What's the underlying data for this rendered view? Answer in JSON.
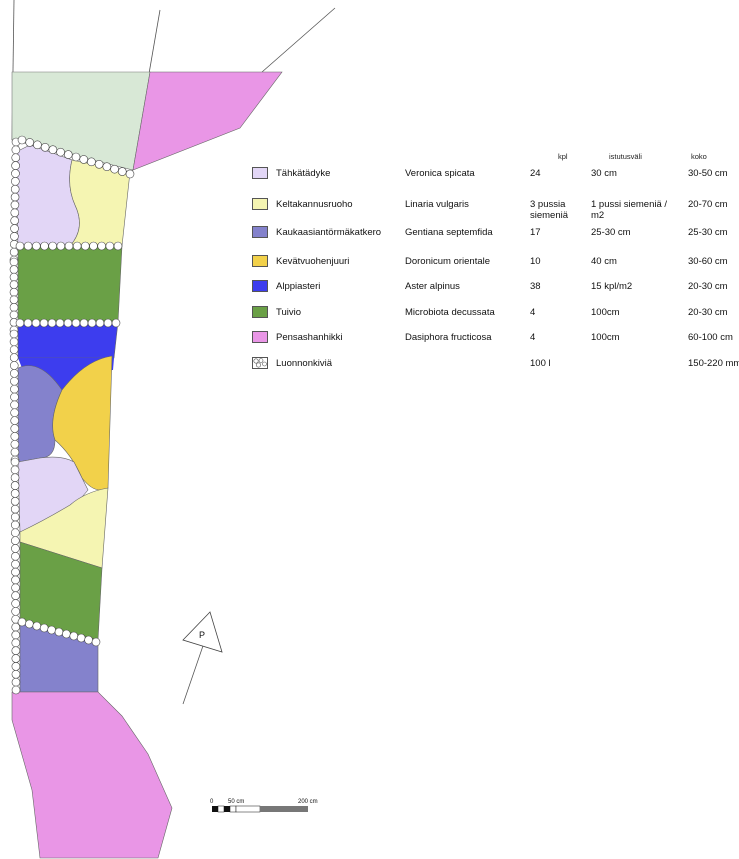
{
  "colors": {
    "tahkatadyke": "#e2d6f6",
    "keltakannusruoho": "#f5f5b2",
    "kaukaasiantormakatkero": "#8482cc",
    "kevatvuohenjuuri": "#f2d14a",
    "alppiasteri": "#3d3dee",
    "tuivio": "#6aa046",
    "pensashanhikki": "#e996e6",
    "lawn": "#d8e8d6",
    "stone": "#ffffff"
  },
  "table": {
    "headers": {
      "kpl": "kpl",
      "istutusvali": "istutusväli",
      "koko": "koko"
    },
    "rows": [
      {
        "swatch": "tahkatadyke",
        "name": "Tähkätädyke",
        "latin": "Veronica spicata",
        "kpl": "24",
        "vali": "30 cm",
        "koko": "30-50 cm"
      },
      {
        "swatch": "keltakannusruoho",
        "name": "Keltakannusruoho",
        "latin": "Linaria vulgaris",
        "kpl": "3 pussia siemeniä",
        "vali": "1 pussi siemeniä / m2",
        "koko": "20-70 cm"
      },
      {
        "swatch": "kaukaasiantormakatkero",
        "name": "Kaukaasiantörmäkatkero",
        "latin": "Gentiana septemfida",
        "kpl": "17",
        "vali": "25-30 cm",
        "koko": "25-30 cm"
      },
      {
        "swatch": "kevatvuohenjuuri",
        "name": "Kevätvuohenjuuri",
        "latin": "Doronicum orientale",
        "kpl": "10",
        "vali": "40 cm",
        "koko": "30-60 cm"
      },
      {
        "swatch": "alppiasteri",
        "name": "Alppiasteri",
        "latin": "Aster alpinus",
        "kpl": "38",
        "vali": "15 kpl/m2",
        "koko": "20-30 cm"
      },
      {
        "swatch": "tuivio",
        "name": "Tuivio",
        "latin": "Microbiota decussata",
        "kpl": "4",
        "vali": "100cm",
        "koko": "20-30 cm"
      },
      {
        "swatch": "pensashanhikki",
        "name": "Pensashanhikki",
        "latin": "Dasiphora fructicosa",
        "kpl": "4",
        "vali": "100cm",
        "koko": "60-100 cm"
      },
      {
        "swatch": "stone",
        "name": "Luonnonkiviä",
        "latin": "",
        "kpl": "100 l",
        "vali": "",
        "koko": "150-220 mm"
      }
    ]
  },
  "north": {
    "label": "P"
  },
  "scale": {
    "zero": "0",
    "mid": "50 cm",
    "end": "200 cm"
  }
}
